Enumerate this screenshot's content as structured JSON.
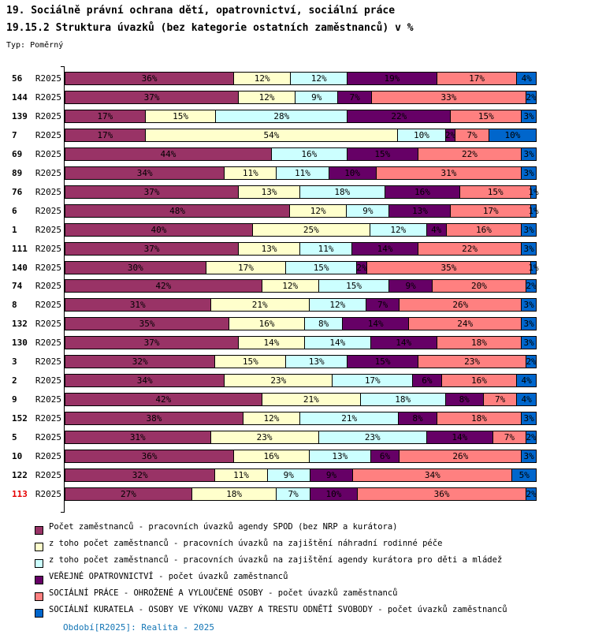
{
  "header": {
    "title_line1": "19. Sociálně právní ochrana dětí, opatrovnictví, sociální práce",
    "title_line2": "19.15.2 Struktura úvazků (bez kategorie ostatních zaměstnanců) v %",
    "type_label": "Typ: Poměrný"
  },
  "footer": {
    "text": "Období[R2025]: Realita - 2025",
    "color": "#1375b5"
  },
  "chart_data": {
    "type": "bar",
    "orientation": "horizontal",
    "stacked": true,
    "unit": "%",
    "xlim": [
      0,
      100
    ],
    "grid": false,
    "legend_position": "bottom",
    "period_label": "R2025",
    "highlight_row": "113",
    "highlight_color": "#e60000",
    "series": [
      {
        "name": "Počet zaměstnanců - pracovních úvazků agendy SPOD (bez NRP a kurátora)",
        "color": "#993366"
      },
      {
        "name": "z toho počet zaměstnanců - pracovních úvazků na zajištění náhradní rodinné péče",
        "color": "#FFFFCC"
      },
      {
        "name": "z toho počet zaměstnanců - pracovních úvazků na zajištění agendy kurátora pro děti a mládež",
        "color": "#CCFFFF"
      },
      {
        "name": "VEŘEJNÉ OPATROVNICTVÍ - počet úvazků zaměstnanců",
        "color": "#660066"
      },
      {
        "name": "SOCIÁLNÍ PRÁCE - OHROŽENÉ A VYLOUČENÉ OSOBY - počet úvazků zaměstnanců",
        "color": "#FF8080"
      },
      {
        "name": "SOCIÁLNÍ KURATELA - OSOBY VE VÝKONU VAZBY A TRESTU ODNĚTÍ SVOBODY - počet úvazků zaměstnanců",
        "color": "#0066CC"
      }
    ],
    "categories": [
      "56",
      "144",
      "139",
      "7",
      "69",
      "89",
      "76",
      "6",
      "1",
      "111",
      "140",
      "74",
      "8",
      "132",
      "130",
      "3",
      "2",
      "9",
      "152",
      "5",
      "10",
      "122",
      "113"
    ],
    "rows": [
      {
        "label": "56",
        "period": "R2025",
        "values": [
          36,
          12,
          12,
          19,
          17,
          4
        ]
      },
      {
        "label": "144",
        "period": "R2025",
        "values": [
          37,
          12,
          9,
          7,
          33,
          2
        ]
      },
      {
        "label": "139",
        "period": "R2025",
        "values": [
          17,
          15,
          28,
          22,
          15,
          3
        ]
      },
      {
        "label": "7",
        "period": "R2025",
        "values": [
          17,
          54,
          10,
          2,
          7,
          10
        ]
      },
      {
        "label": "69",
        "period": "R2025",
        "values": [
          44,
          0,
          16,
          15,
          22,
          3
        ]
      },
      {
        "label": "89",
        "period": "R2025",
        "values": [
          34,
          11,
          11,
          10,
          31,
          3
        ]
      },
      {
        "label": "76",
        "period": "R2025",
        "values": [
          37,
          13,
          18,
          16,
          15,
          1
        ]
      },
      {
        "label": "6",
        "period": "R2025",
        "values": [
          48,
          12,
          9,
          13,
          17,
          1
        ]
      },
      {
        "label": "1",
        "period": "R2025",
        "values": [
          40,
          25,
          12,
          4,
          16,
          3
        ]
      },
      {
        "label": "111",
        "period": "R2025",
        "values": [
          37,
          13,
          11,
          14,
          22,
          3
        ]
      },
      {
        "label": "140",
        "period": "R2025",
        "values": [
          30,
          17,
          15,
          2,
          35,
          1
        ]
      },
      {
        "label": "74",
        "period": "R2025",
        "values": [
          42,
          12,
          15,
          9,
          20,
          2
        ]
      },
      {
        "label": "8",
        "period": "R2025",
        "values": [
          31,
          21,
          12,
          7,
          26,
          3
        ]
      },
      {
        "label": "132",
        "period": "R2025",
        "values": [
          35,
          16,
          8,
          14,
          24,
          3
        ]
      },
      {
        "label": "130",
        "period": "R2025",
        "values": [
          37,
          14,
          14,
          14,
          18,
          3
        ]
      },
      {
        "label": "3",
        "period": "R2025",
        "values": [
          32,
          15,
          13,
          15,
          23,
          2
        ]
      },
      {
        "label": "2",
        "period": "R2025",
        "values": [
          34,
          23,
          17,
          6,
          16,
          4
        ]
      },
      {
        "label": "9",
        "period": "R2025",
        "values": [
          42,
          21,
          18,
          8,
          7,
          4
        ]
      },
      {
        "label": "152",
        "period": "R2025",
        "values": [
          38,
          12,
          21,
          8,
          18,
          3
        ]
      },
      {
        "label": "5",
        "period": "R2025",
        "values": [
          31,
          23,
          23,
          14,
          7,
          2
        ]
      },
      {
        "label": "10",
        "period": "R2025",
        "values": [
          36,
          16,
          13,
          6,
          26,
          3
        ]
      },
      {
        "label": "122",
        "period": "R2025",
        "values": [
          32,
          11,
          9,
          9,
          34,
          5
        ]
      },
      {
        "label": "113",
        "period": "R2025",
        "values": [
          27,
          18,
          7,
          10,
          36,
          2
        ]
      }
    ]
  }
}
